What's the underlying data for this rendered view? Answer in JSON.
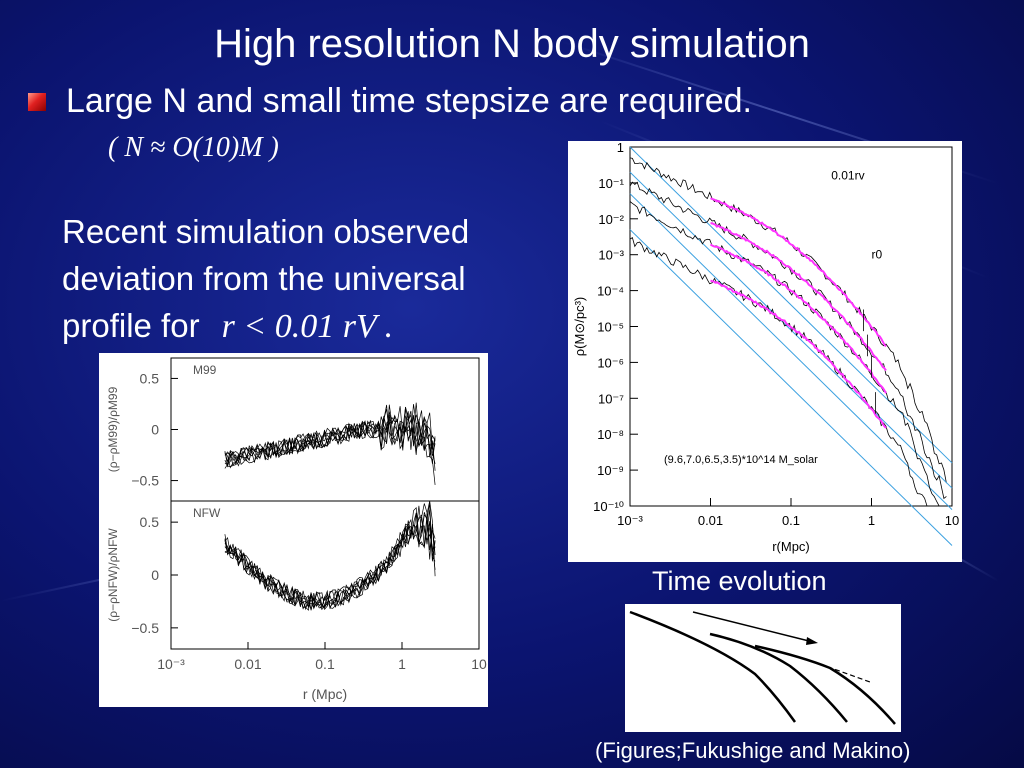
{
  "slide": {
    "title": "High resolution N body simulation",
    "bullet": "Large N and small time stepsize are required.",
    "formula": "( N ≈ O(10)M )",
    "body_line1": "Recent simulation observed",
    "body_line2": "deviation from the universal",
    "body_line3_prefix": "profile for",
    "body_line3_math": "r < 0.01  rV .",
    "caption_time": "Time evolution",
    "credit": "(Figures;Fukushige and Makino)"
  },
  "colors": {
    "bg": "#0b1470",
    "bullet": "#e02020",
    "magenta": "#ff33ff",
    "lightblue": "#3aa0e0",
    "curve": "#000000"
  },
  "chart_data": [
    {
      "type": "line",
      "log_x": true,
      "log_y": true,
      "xlabel": "r(Mpc)",
      "ylabel": "ρ(M⊙/pc³)",
      "xticks": [
        "10⁻³",
        "0.01",
        "0.1",
        "1",
        "10"
      ],
      "yticks": [
        "1",
        "10⁻¹",
        "10⁻²",
        "10⁻³",
        "10⁻⁴",
        "10⁻⁵",
        "10⁻⁶",
        "10⁻⁷",
        "10⁻⁸",
        "10⁻⁹",
        "10⁻¹⁰"
      ],
      "xlim": [
        0.001,
        10
      ],
      "ylim": [
        1e-10,
        1
      ],
      "annotations": [
        "0.01rv",
        "r0",
        "(9.6,7.0,6.5,3.5)*10^14 M_solar"
      ],
      "series_offsets_log": [
        0,
        -0.7,
        -1.3,
        -2.3
      ]
    },
    {
      "type": "line",
      "log_x": true,
      "panels": [
        {
          "label": "M99",
          "ylabel": "(ρ−ρM99)/ρM99",
          "yticks": [
            "0.5",
            "0",
            "−0.5"
          ],
          "ylim": [
            -0.7,
            0.7
          ]
        },
        {
          "label": "NFW",
          "ylabel": "(ρ−ρNFW)/ρNFW",
          "yticks": [
            "0.5",
            "0",
            "−0.5"
          ],
          "ylim": [
            -0.7,
            0.7
          ]
        }
      ],
      "xticks": [
        "10⁻³",
        "0.01",
        "0.1",
        "1",
        "10"
      ],
      "xlabel": "r (Mpc)",
      "xlim": [
        0.001,
        10
      ]
    }
  ]
}
